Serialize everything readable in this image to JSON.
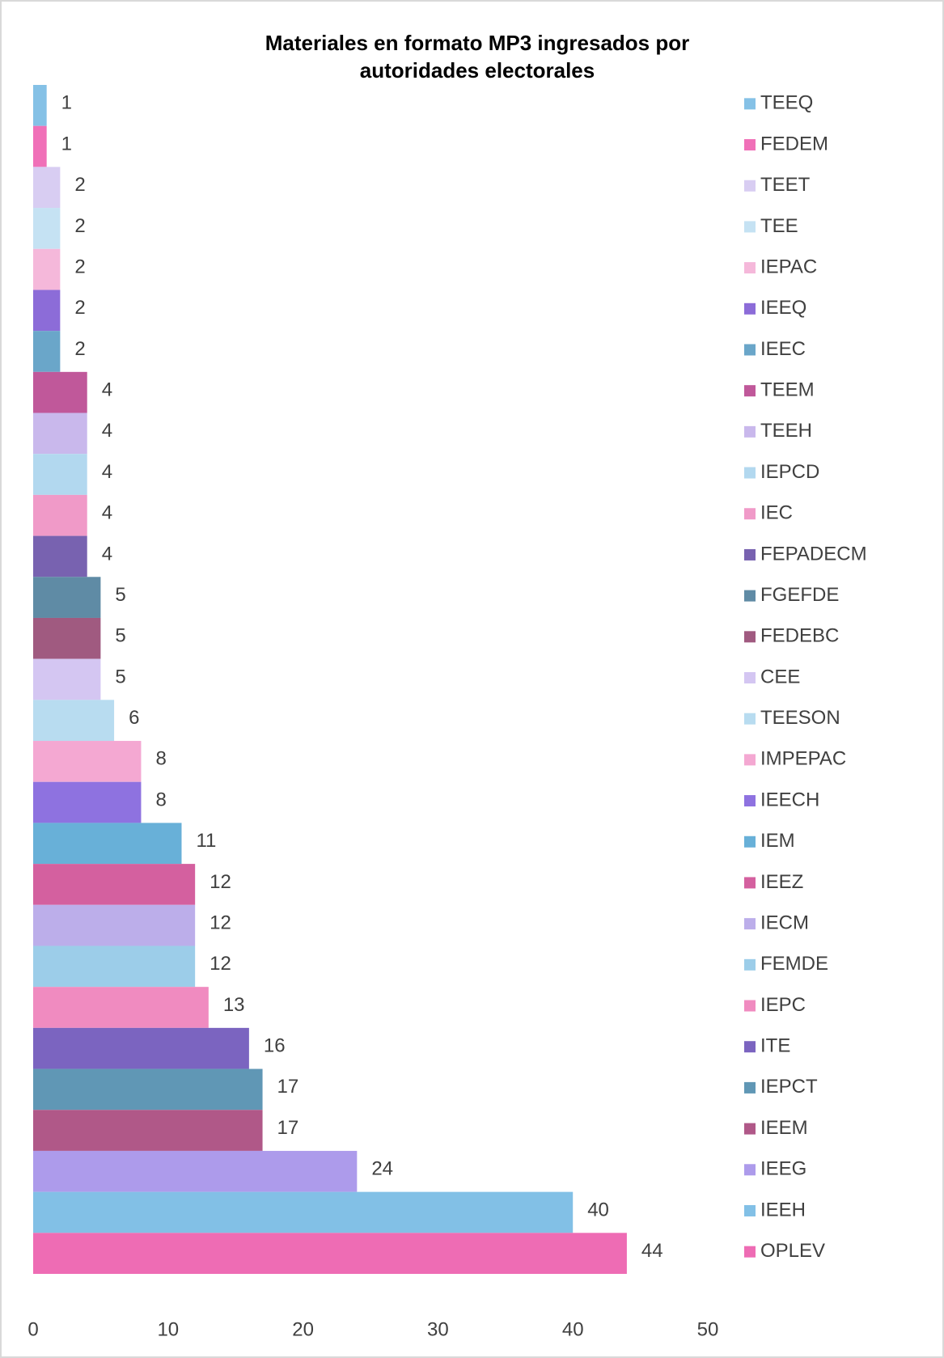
{
  "chart_data": {
    "type": "barh",
    "title": "Materiales en formato MP3 ingresados por autoridades electorales",
    "categories": [
      "TEEQ",
      "FEDEM",
      "TEET",
      "TEE",
      "IEPAC",
      "IEEQ",
      "IEEC",
      "TEEM",
      "TEEH",
      "IEPCD",
      "IEC",
      "FEPADECM",
      "FGEFDE",
      "FEDEBC",
      "CEE",
      "TEESON",
      "IMPEPAC",
      "IEECH",
      "IEM",
      "IEEZ",
      "IECM",
      "FEMDE",
      "IEPC",
      "ITE",
      "IEPCT",
      "IEEM",
      "IEEG",
      "IEEH",
      "OPLEV"
    ],
    "values": [
      1,
      1,
      2,
      2,
      2,
      2,
      2,
      4,
      4,
      4,
      4,
      4,
      5,
      5,
      5,
      6,
      8,
      8,
      11,
      12,
      12,
      12,
      13,
      16,
      17,
      17,
      24,
      40,
      44
    ],
    "colors": [
      "#85c1e6",
      "#f070b8",
      "#d8cdf2",
      "#c5e2f3",
      "#f5b8da",
      "#8c6cd8",
      "#6aa6c9",
      "#c0589a",
      "#c9b8ec",
      "#b2d8ef",
      "#f09ac8",
      "#7862b0",
      "#5f8ba5",
      "#a05a80",
      "#d4c6f2",
      "#b8dcf0",
      "#f4a8d2",
      "#8e72e0",
      "#68b0d8",
      "#d4609f",
      "#bcaeea",
      "#9ccde9",
      "#f08bc0",
      "#7b64c0",
      "#6097b5",
      "#b05888",
      "#ad9beb",
      "#82c0e6",
      "#ee6cb4"
    ],
    "xlim": [
      0,
      50
    ],
    "xticks": [
      0,
      10,
      20,
      30,
      40,
      50
    ],
    "legend": "right"
  }
}
